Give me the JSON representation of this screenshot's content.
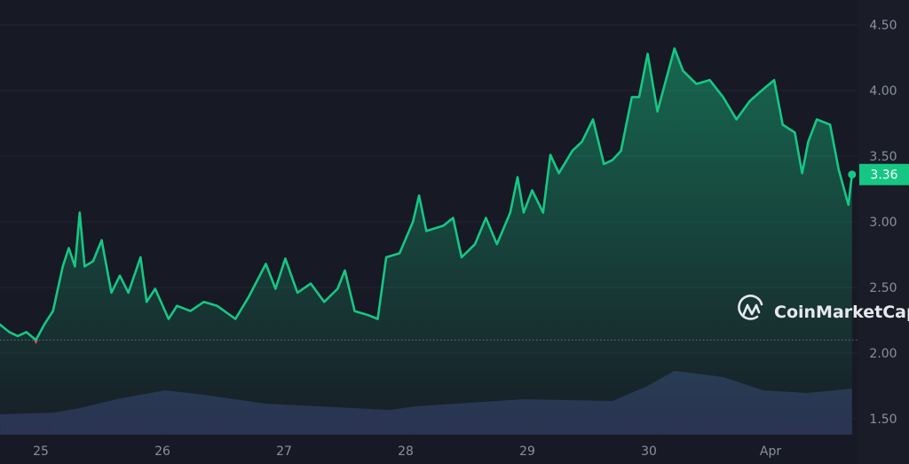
{
  "brand": {
    "name": "CoinMarketCap"
  },
  "colors": {
    "background": "#171924",
    "up": "#16c784",
    "down": "#ea3943",
    "volume": "#2a2f4f",
    "grid": "#222534",
    "axis_text": "#8b8f9e"
  },
  "chart_data": {
    "type": "area",
    "grid": true,
    "xlim": [
      24.66,
      31.67
    ],
    "ylim": [
      1.4,
      4.6
    ],
    "x_ticks": [
      {
        "value": 25,
        "label": "25"
      },
      {
        "value": 26,
        "label": "26"
      },
      {
        "value": 27,
        "label": "27"
      },
      {
        "value": 28,
        "label": "28"
      },
      {
        "value": 29,
        "label": "29"
      },
      {
        "value": 30,
        "label": "30"
      },
      {
        "value": 31,
        "label": "Apr"
      }
    ],
    "y_ticks": [
      "1.50",
      "2.00",
      "2.50",
      "3.00",
      "3.50",
      "4.00",
      "4.50"
    ],
    "reference_price": 2.1,
    "last_price": "3.36",
    "price": {
      "x": [
        24.66,
        24.74,
        24.81,
        24.88,
        24.96,
        25.03,
        25.1,
        25.18,
        25.23,
        25.28,
        25.32,
        25.36,
        25.43,
        25.5,
        25.58,
        25.65,
        25.72,
        25.82,
        25.87,
        25.94,
        26.05,
        26.12,
        26.23,
        26.34,
        26.45,
        26.6,
        26.71,
        26.85,
        26.93,
        27.01,
        27.11,
        27.22,
        27.33,
        27.44,
        27.5,
        27.58,
        27.69,
        27.77,
        27.84,
        27.95,
        28.06,
        28.11,
        28.17,
        28.31,
        28.39,
        28.46,
        28.57,
        28.66,
        28.75,
        28.86,
        28.92,
        28.97,
        29.04,
        29.13,
        29.19,
        29.26,
        29.37,
        29.45,
        29.54,
        29.63,
        29.7,
        29.77,
        29.86,
        29.92,
        29.99,
        30.07,
        30.14,
        30.21,
        30.28,
        30.39,
        30.5,
        30.61,
        30.72,
        30.83,
        30.94,
        31.03,
        31.1,
        31.2,
        31.26,
        31.31,
        31.38,
        31.49,
        31.56,
        31.64,
        31.67
      ],
      "y": [
        2.22,
        2.16,
        2.13,
        2.16,
        2.1,
        2.22,
        2.32,
        2.66,
        2.8,
        2.66,
        3.07,
        2.66,
        2.7,
        2.86,
        2.46,
        2.59,
        2.46,
        2.73,
        2.39,
        2.49,
        2.26,
        2.36,
        2.32,
        2.39,
        2.36,
        2.26,
        2.43,
        2.68,
        2.49,
        2.72,
        2.46,
        2.53,
        2.39,
        2.49,
        2.63,
        2.32,
        2.29,
        2.26,
        2.73,
        2.76,
        3.0,
        3.2,
        2.93,
        2.97,
        3.03,
        2.73,
        2.83,
        3.03,
        2.83,
        3.07,
        3.34,
        3.07,
        3.24,
        3.07,
        3.51,
        3.37,
        3.54,
        3.61,
        3.78,
        3.44,
        3.47,
        3.54,
        3.95,
        3.95,
        4.28,
        3.84,
        4.08,
        4.32,
        4.15,
        4.05,
        4.08,
        3.95,
        3.78,
        3.92,
        4.01,
        4.08,
        3.74,
        3.68,
        3.37,
        3.61,
        3.78,
        3.74,
        3.4,
        3.13,
        3.36
      ]
    },
    "volume": {
      "x": [
        24.66,
        25.1,
        25.32,
        25.62,
        26.02,
        26.34,
        26.85,
        27.87,
        28.08,
        28.97,
        29.7,
        29.99,
        30.21,
        30.61,
        30.94,
        31.3,
        31.67
      ],
      "y": [
        23,
        25,
        30,
        40,
        50,
        45,
        35,
        28,
        32,
        40,
        38,
        55,
        72,
        65,
        50,
        47,
        52
      ]
    }
  }
}
